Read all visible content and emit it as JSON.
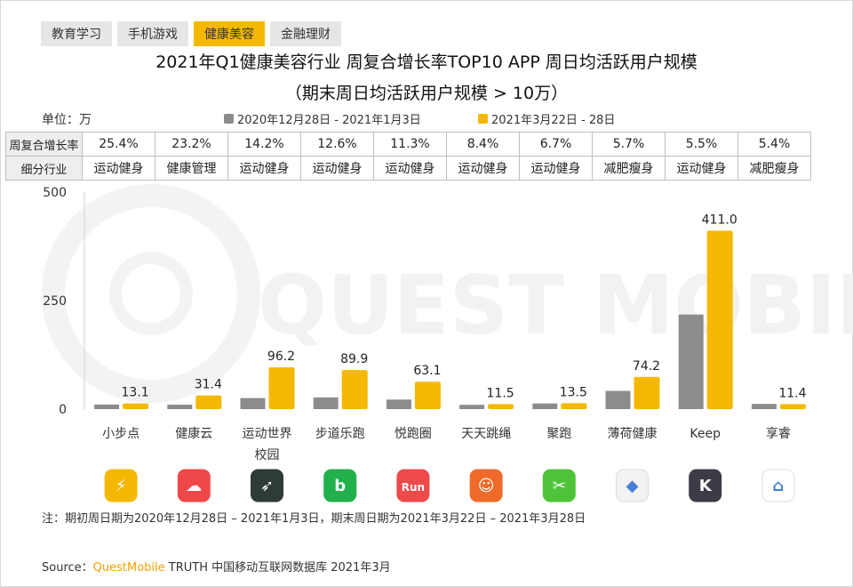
{
  "tabs": [
    {
      "label": "教育学习",
      "active": false
    },
    {
      "label": "手机游戏",
      "active": false
    },
    {
      "label": "健康美容",
      "active": true
    },
    {
      "label": "金融理财",
      "active": false
    }
  ],
  "header": {
    "title": "2021年Q1健康美容行业 周复合增长率TOP10 APP 周日均活跃用户规模",
    "subtitle": "（期末周日均活跃用户规模 > 10万）",
    "unit": "单位：万"
  },
  "table": {
    "row1_label": "周复合增长率",
    "row2_label": "细分行业",
    "growth": [
      "25.4%",
      "23.2%",
      "14.2%",
      "12.6%",
      "11.3%",
      "8.4%",
      "6.7%",
      "5.7%",
      "5.5%",
      "5.4%"
    ],
    "category": [
      "运动健身",
      "健康管理",
      "运动健身",
      "运动健身",
      "运动健身",
      "运动健身",
      "运动健身",
      "减肥瘦身",
      "运动健身",
      "减肥瘦身"
    ]
  },
  "chart_data": {
    "type": "bar",
    "ylim": [
      0,
      500
    ],
    "yticks": [
      "0",
      "250",
      "500"
    ],
    "categories": [
      "小步点",
      "健康云",
      "运动世界校园",
      "步道乐跑",
      "悦跑圈",
      "天天跳绳",
      "聚跑",
      "薄荷健康",
      "Keep",
      "享睿"
    ],
    "series": [
      {
        "name": "2020年12月28日 - 2021年1月3日",
        "color": "#8c8c8c",
        "values": [
          10.5,
          10.2,
          25.5,
          27,
          22,
          10,
          13,
          42,
          218,
          12
        ]
      },
      {
        "name": "2021年3月22日 - 28日",
        "color": "#f5b800",
        "values": [
          13.1,
          31.4,
          96.2,
          89.9,
          63.1,
          11.5,
          13.5,
          74.2,
          411.0,
          11.4
        ]
      }
    ],
    "labels": [
      "13.1",
      "31.4",
      "96.2",
      "89.9",
      "63.1",
      "11.5",
      "13.5",
      "74.2",
      "411.0",
      "11.4"
    ],
    "watermark": "QUEST MOBILE"
  },
  "app_icons": [
    {
      "name": "xiaobudian-icon",
      "color": "#f5b800",
      "glyph": "⚡"
    },
    {
      "name": "jiankangyun-icon",
      "color": "#f04848",
      "glyph": "☁"
    },
    {
      "name": "yundongshijie-icon",
      "color": "#2f3b38",
      "glyph": "➶"
    },
    {
      "name": "budaolepao-icon",
      "color": "#21b04b",
      "glyph": "b"
    },
    {
      "name": "yuepaoquan-icon",
      "color": "#ee4a4a",
      "glyph": "Run"
    },
    {
      "name": "tiantiantiaosheng-icon",
      "color": "#f06a2a",
      "glyph": "☺"
    },
    {
      "name": "jupao-icon",
      "color": "#4fc43a",
      "glyph": "✂"
    },
    {
      "name": "bohejiankang-icon",
      "color": "#f2f2f2",
      "glyph": "◆"
    },
    {
      "name": "keep-icon",
      "color": "#3c3c46",
      "glyph": "K"
    },
    {
      "name": "xiangrui-icon",
      "color": "#ffffff",
      "glyph": "⌂"
    }
  ],
  "footer": {
    "note": "注：期初周日期为2020年12月28日 – 2021年1月3日，期末周日期为2021年3月22日 – 2021年3月28日",
    "source_prefix": "Source：",
    "source_brand": "QuestMobile",
    "source_suffix": " TRUTH 中国移动互联网数据库 2021年3月"
  }
}
